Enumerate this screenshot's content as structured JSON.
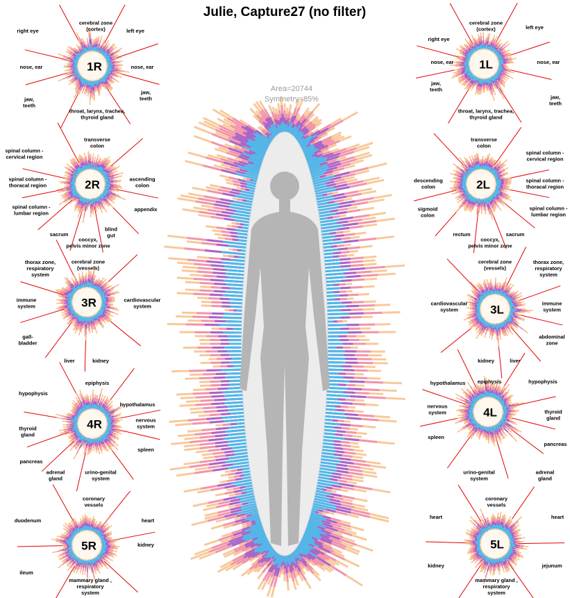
{
  "title": "Julie, Capture27 (no filter)",
  "area": "Area=20744",
  "symmetry": "Symmetry=85%",
  "panels": [
    {
      "id": "1R",
      "labels": [
        [
          "cerebral zone",
          "(cortex)"
        ],
        [
          "right eye"
        ],
        [
          "left eye"
        ],
        [
          "nose, ear"
        ],
        [
          "nose, ear"
        ],
        [
          "jaw,",
          "teeth"
        ],
        [
          "jaw,",
          "teeth"
        ],
        [
          "throat, larynx, trachea,",
          "thyroid gland"
        ]
      ]
    },
    {
      "id": "2R",
      "labels": [
        [
          "transverse",
          "colon"
        ],
        [
          "spinal column -",
          "cervical region"
        ],
        [
          "spinal column -",
          "thoracal region"
        ],
        [
          "ascending",
          "colon"
        ],
        [
          "spinal column -",
          "lumbar region"
        ],
        [
          "appendix"
        ],
        [
          "sacrum"
        ],
        [
          "blind",
          "gut"
        ],
        [
          "coccyx,",
          "pelvis minor zone"
        ]
      ]
    },
    {
      "id": "3R",
      "labels": [
        [
          "thorax zone,",
          "respiratory",
          "system"
        ],
        [
          "cerebral zone",
          "(vessels)"
        ],
        [
          "immune",
          "system"
        ],
        [
          "cardiovascular",
          "system"
        ],
        [
          "gall-",
          "bladder"
        ],
        [
          "liver"
        ],
        [
          "kidney"
        ]
      ]
    },
    {
      "id": "4R",
      "labels": [
        [
          "epiphysis"
        ],
        [
          "hypophysis"
        ],
        [
          "hypothalamus"
        ],
        [
          "thyroid",
          "gland"
        ],
        [
          "nervous",
          "system"
        ],
        [
          "pancreas"
        ],
        [
          "spleen"
        ],
        [
          "adrenal",
          "gland"
        ],
        [
          "urino-genital",
          "system"
        ]
      ]
    },
    {
      "id": "5R",
      "labels": [
        [
          "coronary",
          "vessels"
        ],
        [
          "duodenum"
        ],
        [
          "heart"
        ],
        [
          "kidney"
        ],
        [
          "ileum"
        ],
        [
          "mammary gland ,",
          "respiratory",
          "system"
        ]
      ]
    },
    {
      "id": "1L",
      "labels": [
        [
          "cerebral zone",
          "(cortex)"
        ],
        [
          "right eye"
        ],
        [
          "left eye"
        ],
        [
          "nose, ear"
        ],
        [
          "nose, ear"
        ],
        [
          "jaw,",
          "teeth"
        ],
        [
          "jaw,",
          "teeth"
        ],
        [
          "throat, larynx, trachea,",
          "thyroid gland"
        ]
      ]
    },
    {
      "id": "2L",
      "labels": [
        [
          "transverse",
          "colon"
        ],
        [
          "spinal column -",
          "cervical region"
        ],
        [
          "descending",
          "colon"
        ],
        [
          "spinal column -",
          "thoracal region"
        ],
        [
          "sigmoid",
          "colon"
        ],
        [
          "spinal column -",
          "lumbar region"
        ],
        [
          "rectum"
        ],
        [
          "sacrum"
        ],
        [
          "coccyx,",
          "pelvis minor zone"
        ]
      ]
    },
    {
      "id": "3L",
      "labels": [
        [
          "cerebral zone",
          "(vessels)"
        ],
        [
          "thorax zone,",
          "respiratory",
          "system"
        ],
        [
          "cardiovascular",
          "system"
        ],
        [
          "immune",
          "system"
        ],
        [
          "abdominal",
          "zone"
        ],
        [
          "kidney"
        ],
        [
          "liver"
        ]
      ]
    },
    {
      "id": "4L",
      "labels": [
        [
          "epiphysis"
        ],
        [
          "hypothalamus"
        ],
        [
          "hypophysis"
        ],
        [
          "nervous",
          "system"
        ],
        [
          "thyroid",
          "gland"
        ],
        [
          "spleen"
        ],
        [
          "pancreas"
        ],
        [
          "urino-genital",
          "system"
        ],
        [
          "adrenal",
          "gland"
        ]
      ]
    },
    {
      "id": "5L",
      "labels": [
        [
          "coronary",
          "vessels"
        ],
        [
          "heart"
        ],
        [
          "heart"
        ],
        [
          "kidney"
        ],
        [
          "jejunum"
        ],
        [
          "mammary gland ,",
          "respiratory",
          "system"
        ]
      ]
    }
  ]
}
